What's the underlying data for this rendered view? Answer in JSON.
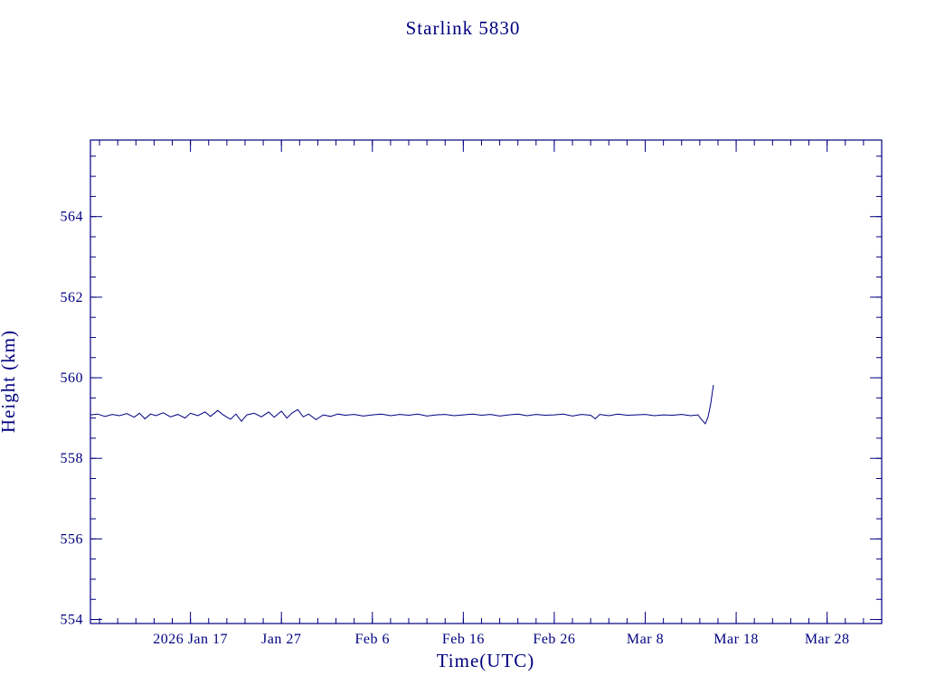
{
  "colors": {
    "accent": "#000080",
    "background": "#ffffff"
  },
  "chart_data": {
    "type": "line",
    "title": "Starlink 5830",
    "xlabel": "Time(UTC)",
    "ylabel": "Height (km)",
    "text_color": "#000080",
    "line_color": "#000080",
    "axis_color": "#000080",
    "grid": false,
    "legend": "none",
    "xlim": [
      0,
      87
    ],
    "ylim": [
      553.9,
      565.9
    ],
    "x_minor_step": 2,
    "y_minor_step": 0.5,
    "x_ticks": [
      {
        "label": "2026 Jan 17",
        "value": 11
      },
      {
        "label": "Jan 27",
        "value": 21
      },
      {
        "label": "Feb  6",
        "value": 31
      },
      {
        "label": "Feb 16",
        "value": 41
      },
      {
        "label": "Feb 26",
        "value": 51
      },
      {
        "label": "Mar  8",
        "value": 61
      },
      {
        "label": "Mar 18",
        "value": 71
      },
      {
        "label": "Mar 28",
        "value": 81
      }
    ],
    "y_ticks": [
      {
        "label": "554",
        "value": 554
      },
      {
        "label": "556",
        "value": 556
      },
      {
        "label": "558",
        "value": 558
      },
      {
        "label": "560",
        "value": 560
      },
      {
        "label": "562",
        "value": 562
      },
      {
        "label": "564",
        "value": 564
      }
    ],
    "series": [
      {
        "name": "height",
        "points": [
          [
            0,
            559.08
          ],
          [
            0.8,
            559.1
          ],
          [
            1.6,
            559.04
          ],
          [
            2.4,
            559.09
          ],
          [
            3.2,
            559.06
          ],
          [
            4,
            559.11
          ],
          [
            4.8,
            559.02
          ],
          [
            5.4,
            559.12
          ],
          [
            6,
            558.98
          ],
          [
            6.6,
            559.1
          ],
          [
            7.2,
            559.06
          ],
          [
            8,
            559.13
          ],
          [
            8.8,
            559.03
          ],
          [
            9.6,
            559.09
          ],
          [
            10.4,
            559.0
          ],
          [
            11,
            559.12
          ],
          [
            11.8,
            559.06
          ],
          [
            12.6,
            559.15
          ],
          [
            13.2,
            559.04
          ],
          [
            14,
            559.19
          ],
          [
            14.6,
            559.08
          ],
          [
            15.4,
            558.97
          ],
          [
            16,
            559.1
          ],
          [
            16.6,
            558.92
          ],
          [
            17.2,
            559.08
          ],
          [
            18,
            559.12
          ],
          [
            18.8,
            559.03
          ],
          [
            19.6,
            559.15
          ],
          [
            20.2,
            559.02
          ],
          [
            21,
            559.17
          ],
          [
            21.6,
            559.0
          ],
          [
            22.2,
            559.13
          ],
          [
            22.8,
            559.21
          ],
          [
            23.4,
            559.03
          ],
          [
            24,
            559.1
          ],
          [
            24.8,
            558.96
          ],
          [
            25.6,
            559.08
          ],
          [
            26.4,
            559.04
          ],
          [
            27.2,
            559.1
          ],
          [
            28,
            559.07
          ],
          [
            29,
            559.09
          ],
          [
            30,
            559.05
          ],
          [
            31,
            559.08
          ],
          [
            32,
            559.1
          ],
          [
            33,
            559.06
          ],
          [
            34,
            559.09
          ],
          [
            35,
            559.07
          ],
          [
            36,
            559.1
          ],
          [
            37,
            559.05
          ],
          [
            38,
            559.08
          ],
          [
            39,
            559.09
          ],
          [
            40,
            559.06
          ],
          [
            41,
            559.08
          ],
          [
            42,
            559.1
          ],
          [
            43,
            559.07
          ],
          [
            44,
            559.09
          ],
          [
            45,
            559.05
          ],
          [
            46,
            559.08
          ],
          [
            47,
            559.1
          ],
          [
            48,
            559.06
          ],
          [
            49,
            559.09
          ],
          [
            50,
            559.07
          ],
          [
            51,
            559.08
          ],
          [
            52,
            559.1
          ],
          [
            53,
            559.05
          ],
          [
            54,
            559.09
          ],
          [
            55,
            559.07
          ],
          [
            55.5,
            558.98
          ],
          [
            56,
            559.09
          ],
          [
            57,
            559.06
          ],
          [
            58,
            559.1
          ],
          [
            59,
            559.07
          ],
          [
            60,
            559.08
          ],
          [
            61,
            559.09
          ],
          [
            62,
            559.06
          ],
          [
            63,
            559.08
          ],
          [
            64,
            559.07
          ],
          [
            65,
            559.09
          ],
          [
            66,
            559.06
          ],
          [
            66.8,
            559.08
          ],
          [
            67.2,
            558.96
          ],
          [
            67.6,
            558.86
          ],
          [
            67.9,
            559.02
          ],
          [
            68.2,
            559.35
          ],
          [
            68.5,
            559.82
          ]
        ]
      }
    ]
  }
}
